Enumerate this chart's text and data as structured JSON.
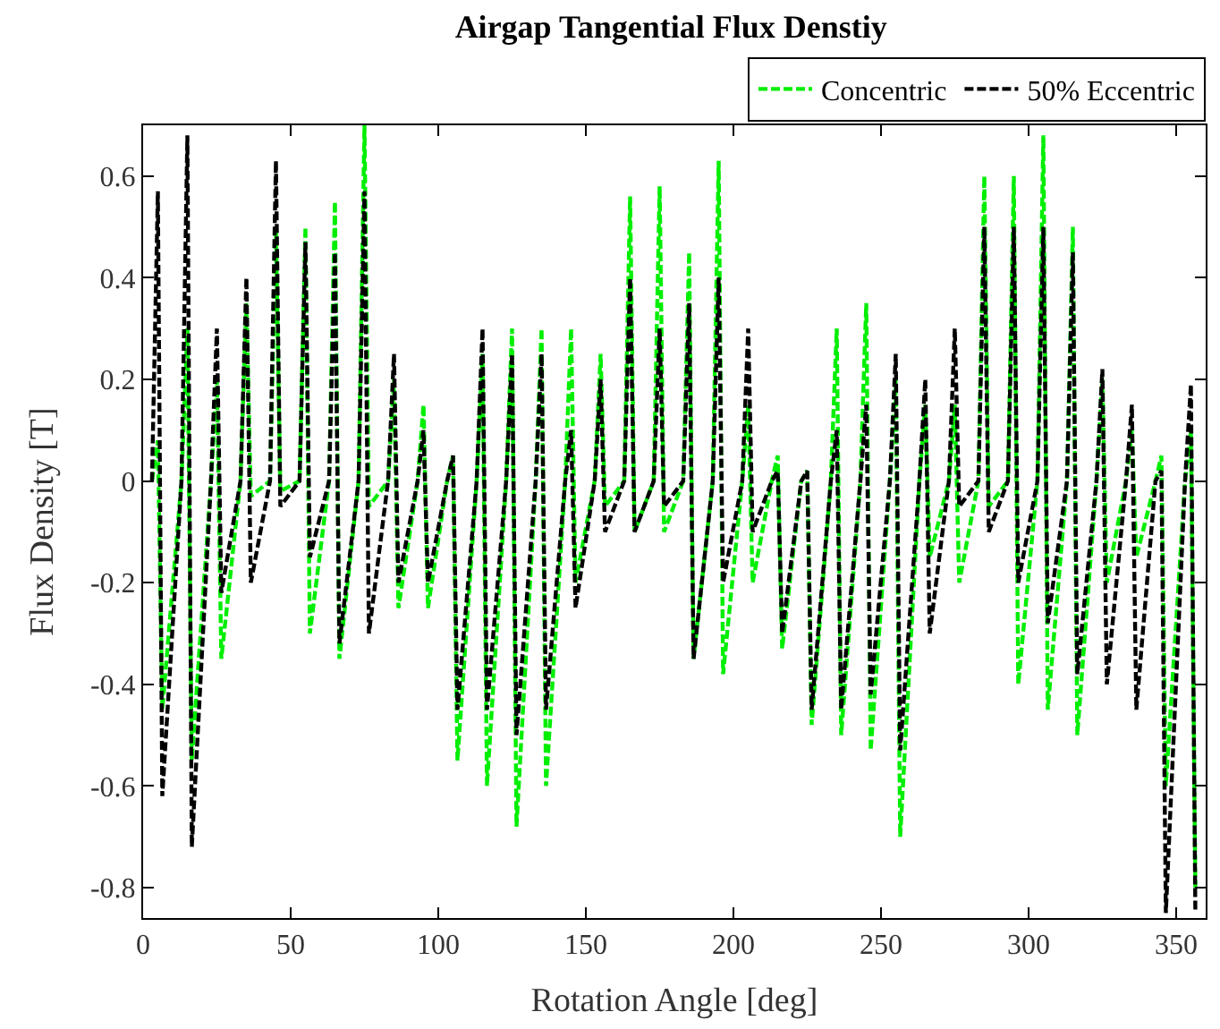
{
  "chart_data": {
    "type": "line",
    "title": "Airgap Tangential Flux Denstiy",
    "xlabel": "Rotation Angle [deg]",
    "ylabel": "Flux Density [T]",
    "x": [
      3,
      5,
      6.5,
      13,
      15,
      16.5,
      23,
      25,
      26.5,
      33,
      35,
      36.5,
      43,
      45,
      46.5,
      53,
      55,
      56.5,
      63,
      65,
      66.5,
      73,
      75,
      76.5,
      83,
      85,
      86.5,
      93,
      95,
      96.5,
      103,
      105,
      106.5,
      113,
      115,
      116.5,
      123,
      125,
      126.5,
      133,
      135,
      136.5,
      143,
      145,
      146.5,
      153,
      155,
      156.5,
      163,
      165,
      166.5,
      173,
      175,
      176.5,
      183,
      185,
      186.5,
      193,
      195,
      196.5,
      203,
      205,
      206.5,
      213,
      215,
      216.5,
      223,
      225,
      226.5,
      233,
      235,
      236.5,
      243,
      245,
      246.5,
      253,
      255,
      256.5,
      263,
      265,
      266.5,
      273,
      275,
      276.5,
      283,
      285,
      286.5,
      293,
      295,
      296.5,
      303,
      305,
      306.5,
      313,
      315,
      316.5,
      323,
      325,
      326.5,
      333,
      335,
      336.5,
      343,
      345,
      346.5,
      353,
      355,
      356.5
    ],
    "series": [
      {
        "name": "Concentric",
        "color": "#00ee00",
        "values": [
          0,
          0.08,
          -0.45,
          0,
          0.3,
          -0.55,
          0,
          0.2,
          -0.35,
          0,
          0.35,
          -0.03,
          0,
          0.5,
          -0.02,
          0,
          0.5,
          -0.3,
          0,
          0.55,
          -0.35,
          0,
          0.7,
          -0.05,
          0,
          0.2,
          -0.25,
          0,
          0.15,
          -0.25,
          0,
          0.05,
          -0.55,
          0,
          0.25,
          -0.6,
          0,
          0.3,
          -0.68,
          0,
          0.3,
          -0.6,
          0,
          0.3,
          -0.2,
          0,
          0.25,
          -0.05,
          0,
          0.56,
          -0.1,
          0,
          0.58,
          -0.1,
          0,
          0.45,
          -0.35,
          0,
          0.63,
          -0.38,
          0,
          0.15,
          -0.2,
          0,
          0.05,
          -0.33,
          0,
          0.02,
          -0.48,
          0,
          0.3,
          -0.5,
          0,
          0.35,
          -0.53,
          0,
          0.2,
          -0.7,
          0,
          0.15,
          -0.15,
          0,
          0.15,
          -0.2,
          0,
          0.6,
          -0.05,
          0,
          0.6,
          -0.4,
          0,
          0.68,
          -0.45,
          0,
          0.5,
          -0.5,
          0,
          0.2,
          -0.2,
          0,
          0.1,
          -0.15,
          0,
          0.05,
          -0.6,
          0,
          0.1,
          -0.8
        ]
      },
      {
        "name": "50% Eccentric",
        "color": "#000000",
        "values": [
          0,
          0.57,
          -0.62,
          0,
          0.68,
          -0.72,
          0,
          0.3,
          -0.22,
          0,
          0.4,
          -0.2,
          0,
          0.63,
          -0.05,
          0,
          0.47,
          -0.15,
          0,
          0.45,
          -0.32,
          0,
          0.57,
          -0.3,
          0,
          0.25,
          -0.2,
          0,
          0.1,
          -0.2,
          0,
          0.05,
          -0.45,
          0,
          0.3,
          -0.45,
          0,
          0.25,
          -0.5,
          0,
          0.25,
          -0.45,
          0,
          0.1,
          -0.25,
          0,
          0.2,
          -0.1,
          0,
          0.4,
          -0.1,
          0,
          0.3,
          -0.05,
          0,
          0.35,
          -0.35,
          0,
          0.4,
          -0.2,
          0,
          0.3,
          -0.1,
          0,
          0.02,
          -0.3,
          0,
          0.02,
          -0.45,
          0,
          0.1,
          -0.45,
          0,
          0.15,
          -0.42,
          0,
          0.25,
          -0.53,
          0,
          0.2,
          -0.3,
          0,
          0.3,
          -0.05,
          0,
          0.5,
          -0.1,
          0,
          0.5,
          -0.2,
          0,
          0.5,
          -0.28,
          0,
          0.45,
          -0.38,
          0,
          0.22,
          -0.4,
          0,
          0.15,
          -0.45,
          0,
          0.02,
          -0.85,
          0,
          0.19,
          -0.85
        ]
      }
    ],
    "xlim": [
      0,
      360
    ],
    "xticks": [
      0,
      50,
      100,
      150,
      200,
      250,
      300,
      350
    ],
    "ylim": [
      -0.86,
      0.7
    ],
    "yticks": [
      -0.8,
      -0.6,
      -0.4,
      -0.2,
      0,
      0.2,
      0.4,
      0.6
    ],
    "legend": "top right",
    "marker": "none",
    "line_style": "dashed"
  }
}
